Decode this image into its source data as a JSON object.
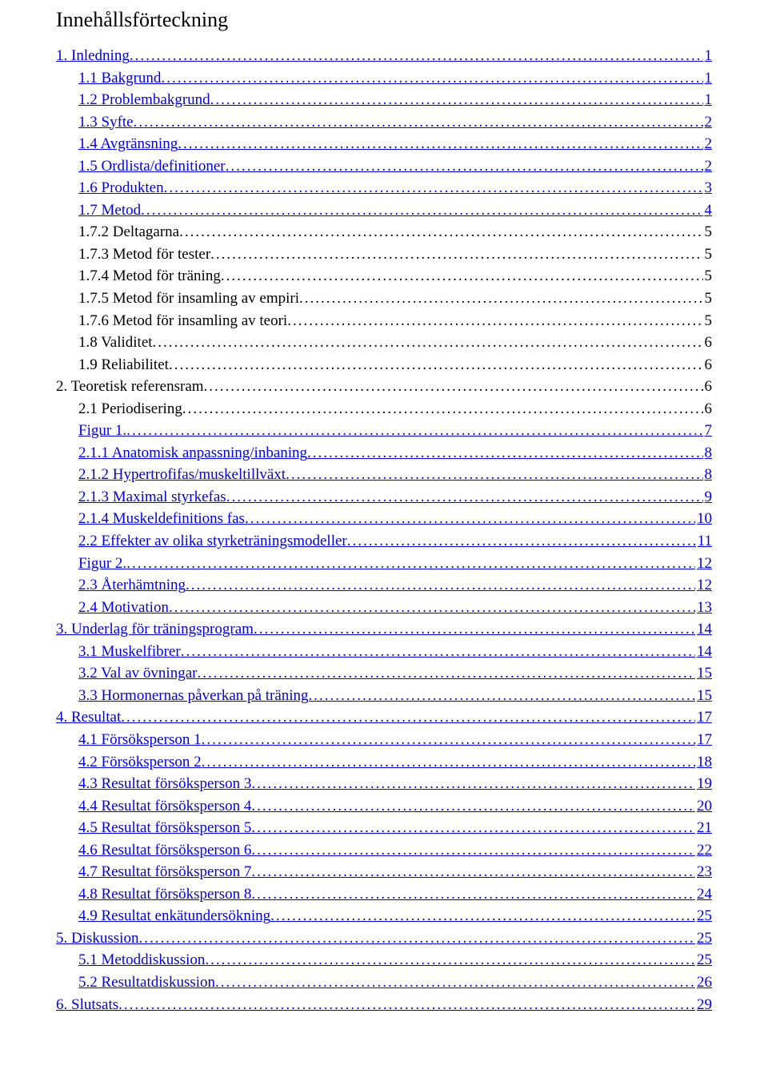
{
  "title": "Innehållsförteckning",
  "colors": {
    "text": "#000000",
    "link": "#0000ee",
    "background": "#ffffff"
  },
  "typography": {
    "font_family": "Times New Roman",
    "title_fontsize": 26,
    "body_fontsize": 19,
    "line_height": 1.45
  },
  "dot_leader_char": ".",
  "entries": [
    {
      "label": "1. Inledning",
      "page": "1",
      "link": true,
      "indent": 0
    },
    {
      "label": "1.1 Bakgrund",
      "page": "1",
      "link": true,
      "indent": 1
    },
    {
      "label": "1.2 Problembakgrund",
      "page": "1",
      "link": true,
      "indent": 1
    },
    {
      "label": "1.3 Syfte",
      "page": "2",
      "link": true,
      "indent": 1
    },
    {
      "label": "1.4 Avgränsning",
      "page": "2",
      "link": true,
      "indent": 1
    },
    {
      "label": "1.5 Ordlista/definitioner",
      "page": "2",
      "link": true,
      "indent": 1
    },
    {
      "label": "1.6 Produkten",
      "page": "3",
      "link": true,
      "indent": 1
    },
    {
      "label": "1.7 Metod",
      "page": "4",
      "link": true,
      "indent": 1
    },
    {
      "label": "1.7.2 Deltagarna",
      "page": "5",
      "link": false,
      "indent": 1
    },
    {
      "label": "1.7.3 Metod för tester",
      "page": "5",
      "link": false,
      "indent": 1
    },
    {
      "label": "1.7.4 Metod för träning",
      "page": "5",
      "link": false,
      "indent": 1
    },
    {
      "label": "1.7.5 Metod för insamling av empiri",
      "page": "5",
      "link": false,
      "indent": 1
    },
    {
      "label": "1.7.6 Metod för insamling av teori",
      "page": "5",
      "link": false,
      "indent": 1
    },
    {
      "label": "1.8 Validitet",
      "page": "6",
      "link": false,
      "indent": 1
    },
    {
      "label": "1.9 Reliabilitet",
      "page": "6",
      "link": false,
      "indent": 1
    },
    {
      "label": "2. Teoretisk referensram",
      "page": "6",
      "link": false,
      "indent": 0
    },
    {
      "label": "2.1 Periodisering",
      "page": "6",
      "link": false,
      "indent": 1
    },
    {
      "label": "Figur 1. ",
      "page": "7",
      "link": true,
      "indent": 1
    },
    {
      "label": "2.1.1 Anatomisk anpassning/inbaning",
      "page": "8",
      "link": true,
      "indent": 1
    },
    {
      "label": "2.1.2 Hypertrofifas/muskeltillväxt",
      "page": "8",
      "link": true,
      "indent": 1
    },
    {
      "label": "2.1.3 Maximal styrkefas",
      "page": "9",
      "link": true,
      "indent": 1
    },
    {
      "label": "2.1.4 Muskeldefinitions fas",
      "page": "10",
      "link": true,
      "indent": 1
    },
    {
      "label": "2.2 Effekter av olika styrketräningsmodeller",
      "page": "11",
      "link": true,
      "indent": 1
    },
    {
      "label": "Figur 2. ",
      "page": "12",
      "link": true,
      "indent": 1
    },
    {
      "label": "2.3 Återhämtning",
      "page": "12",
      "link": true,
      "indent": 1
    },
    {
      "label": "2.4 Motivation",
      "page": "13",
      "link": true,
      "indent": 1
    },
    {
      "label": "3. Underlag för träningsprogram",
      "page": "14",
      "link": true,
      "indent": 0
    },
    {
      "label": "3.1 Muskelfibrer",
      "page": "14",
      "link": true,
      "indent": 1
    },
    {
      "label": "3.2 Val av övningar",
      "page": "15",
      "link": true,
      "indent": 1
    },
    {
      "label": "3.3 Hormonernas påverkan på träning",
      "page": "15",
      "link": true,
      "indent": 1
    },
    {
      "label": "4. Resultat",
      "page": "17",
      "link": true,
      "indent": 0
    },
    {
      "label": "4.1 Försöksperson 1",
      "page": "17",
      "link": true,
      "indent": 1
    },
    {
      "label": "4.2 Försöksperson 2",
      "page": "18",
      "link": true,
      "indent": 1
    },
    {
      "label": "4.3 Resultat försöksperson 3",
      "page": "19",
      "link": true,
      "indent": 1
    },
    {
      "label": "4.4 Resultat försöksperson 4",
      "page": "20",
      "link": true,
      "indent": 1
    },
    {
      "label": "4.5 Resultat försöksperson 5",
      "page": "21",
      "link": true,
      "indent": 1
    },
    {
      "label": "4.6 Resultat försöksperson 6",
      "page": "22",
      "link": true,
      "indent": 1
    },
    {
      "label": "4.7 Resultat försöksperson 7",
      "page": "23",
      "link": true,
      "indent": 1
    },
    {
      "label": "4.8 Resultat försöksperson 8",
      "page": "24",
      "link": true,
      "indent": 1
    },
    {
      "label": "4.9 Resultat enkätundersökning",
      "page": "25",
      "link": true,
      "indent": 1
    },
    {
      "label": "5. Diskussion",
      "page": "25",
      "link": true,
      "indent": 0
    },
    {
      "label": "5.1 Metoddiskussion",
      "page": "25",
      "link": true,
      "indent": 1
    },
    {
      "label": "5.2 Resultatdiskussion",
      "page": "26",
      "link": true,
      "indent": 1
    },
    {
      "label": "6. Slutsats",
      "page": "29",
      "link": true,
      "indent": 0
    }
  ]
}
